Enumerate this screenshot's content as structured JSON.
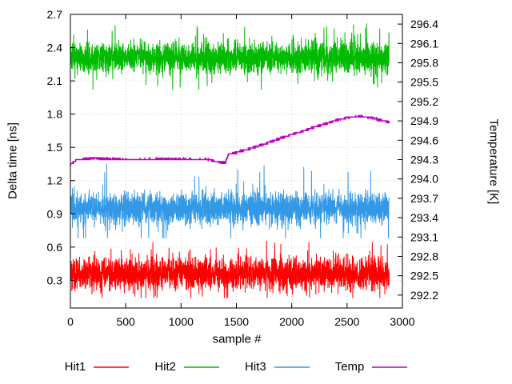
{
  "chart_data": {
    "type": "line",
    "title": "",
    "xlabel": "sample #",
    "ylabel_left": "Delta time [ns]",
    "ylabel_right": "Temperature [K]",
    "x_range": [
      0,
      3000
    ],
    "x_ticks": [
      0,
      500,
      1000,
      1500,
      2000,
      2500,
      3000
    ],
    "y_left_range": [
      0.05,
      2.7
    ],
    "y_left_ticks": [
      0.3,
      0.6,
      0.9,
      1.2,
      1.5,
      1.8,
      2.1,
      2.4,
      2.7
    ],
    "y_right_range": [
      292.0,
      296.55
    ],
    "y_right_ticks": [
      292.2,
      292.5,
      292.8,
      293.1,
      293.4,
      293.7,
      294.0,
      294.3,
      294.6,
      294.9,
      295.2,
      295.5,
      295.8,
      296.1,
      296.4
    ],
    "grid": true,
    "legend_position": "bottom",
    "sample_count": 2880,
    "series": [
      {
        "name": "Hit1",
        "color": "#ff0000",
        "axis": "left",
        "style": "noisy",
        "mean": 0.36,
        "noise": 0.07,
        "min": 0.14,
        "max": 0.66
      },
      {
        "name": "Hit2",
        "color": "#00bb00",
        "axis": "left",
        "style": "noisy",
        "mean": 2.31,
        "noise": 0.07,
        "min": 2.02,
        "max": 2.62
      },
      {
        "name": "Hit3",
        "color": "#3399e6",
        "axis": "left",
        "style": "noisy",
        "mean": 0.95,
        "noise": 0.07,
        "min": 0.68,
        "max": 1.38
      },
      {
        "name": "Temp",
        "color": "#c000c0",
        "axis": "right",
        "style": "step",
        "step_size": 0.03,
        "jitter": 0.006,
        "keypoints_x": [
          0,
          60,
          200,
          500,
          900,
          1250,
          1320,
          1400,
          1430,
          1500,
          1600,
          1700,
          1800,
          1900,
          2000,
          2100,
          2200,
          2300,
          2400,
          2500,
          2600,
          2700,
          2780,
          2880
        ],
        "keypoints_y": [
          294.22,
          294.3,
          294.32,
          294.3,
          294.31,
          294.3,
          294.27,
          294.25,
          294.38,
          294.41,
          294.46,
          294.51,
          294.57,
          294.63,
          294.69,
          294.74,
          294.8,
          294.85,
          294.91,
          294.95,
          294.97,
          294.96,
          294.92,
          294.88
        ]
      }
    ]
  }
}
